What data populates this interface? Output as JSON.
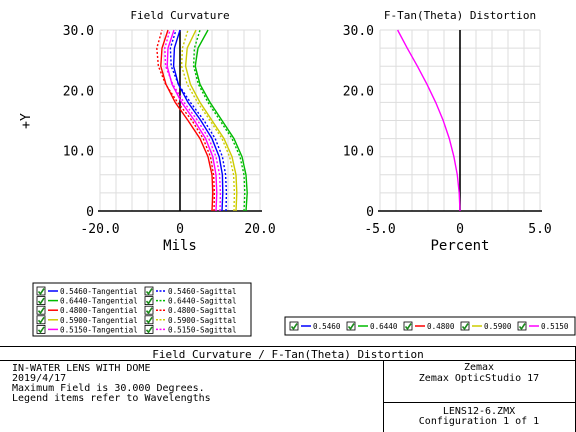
{
  "left_plot": {
    "title": "Field Curvature",
    "xlabel": "Mils",
    "ylabel": "+Y",
    "x_ticks": [
      "-20.0",
      "0",
      "20.0"
    ],
    "y_ticks": [
      "0",
      "10.0",
      "20.0",
      "30.0"
    ]
  },
  "right_plot": {
    "title": "F-Tan(Theta) Distortion",
    "xlabel": "Percent",
    "x_ticks": [
      "-5.0",
      "0",
      "5.0"
    ],
    "y_ticks": [
      "0",
      "10.0",
      "20.0",
      "30.0"
    ]
  },
  "legend_left": [
    [
      "0.5460-Tangential",
      "0.5460-Sagittal"
    ],
    [
      "0.6440-Tangential",
      "0.6440-Sagittal"
    ],
    [
      "0.4800-Tangential",
      "0.4800-Sagittal"
    ],
    [
      "0.5900-Tangential",
      "0.5900-Sagittal"
    ],
    [
      "0.5150-Tangential",
      "0.5150-Sagittal"
    ]
  ],
  "legend_right": [
    "0.5460",
    "0.6440",
    "0.4800",
    "0.5900",
    "0.5150"
  ],
  "colors": {
    "0.5460": "#0000ff",
    "0.6440": "#00bb00",
    "0.4800": "#ff0000",
    "0.5900": "#cccc00",
    "0.5150": "#ff00ff"
  },
  "info": {
    "banner": "Field Curvature / F-Tan(Theta) Distortion",
    "lines": [
      "IN-WATER LENS WITH DOME",
      "2019/4/17",
      "Maximum Field is 30.000 Degrees.",
      "Legend items refer to Wavelengths"
    ],
    "company": "Zemax",
    "product": "Zemax OpticStudio 17",
    "file": "LENS12-6.ZMX",
    "config": "Configuration 1 of 1"
  },
  "chart_data": [
    {
      "type": "line",
      "title": "Field Curvature",
      "xlabel": "Mils",
      "ylabel": "+Y",
      "xlim": [
        -20,
        20
      ],
      "ylim": [
        0,
        30
      ],
      "grid": true,
      "y": [
        0,
        3,
        6,
        9,
        12,
        15,
        18,
        21,
        24,
        27,
        30
      ],
      "series": [
        {
          "name": "0.5460-Tangential",
          "wavelength": "0.5460",
          "style": "solid",
          "x": [
            10.5,
            10.7,
            10.6,
            9.8,
            8.0,
            5.2,
            2.0,
            -0.4,
            -1.6,
            -1.4,
            0.0
          ]
        },
        {
          "name": "0.6440-Tangential",
          "wavelength": "0.6440",
          "style": "solid",
          "x": [
            16.5,
            16.8,
            16.5,
            15.5,
            13.5,
            10.5,
            7.5,
            5.0,
            3.8,
            4.5,
            7.0
          ]
        },
        {
          "name": "0.4800-Tangential",
          "wavelength": "0.4800",
          "style": "solid",
          "x": [
            8.0,
            8.2,
            8.0,
            7.0,
            5.0,
            2.0,
            -1.2,
            -3.5,
            -4.8,
            -4.5,
            -3.0
          ]
        },
        {
          "name": "0.5900-Tangential",
          "wavelength": "0.5900",
          "style": "solid",
          "x": [
            14.0,
            14.2,
            14.0,
            13.0,
            11.0,
            8.0,
            5.0,
            2.6,
            1.4,
            1.8,
            4.0
          ]
        },
        {
          "name": "0.5150-Tangential",
          "wavelength": "0.5150",
          "style": "solid",
          "x": [
            9.0,
            9.2,
            9.0,
            8.2,
            6.4,
            3.6,
            0.4,
            -2.0,
            -3.2,
            -3.0,
            -1.5
          ]
        },
        {
          "name": "0.5460-Sagittal",
          "wavelength": "0.5460",
          "style": "dotted",
          "x": [
            11.5,
            11.6,
            11.4,
            10.6,
            8.8,
            6.0,
            2.6,
            -0.4,
            -2.2,
            -2.4,
            -1.0
          ]
        },
        {
          "name": "0.6440-Sagittal",
          "wavelength": "0.6440",
          "style": "dotted",
          "x": [
            16.0,
            16.2,
            16.0,
            15.0,
            13.0,
            10.0,
            7.0,
            4.6,
            3.4,
            3.6,
            5.0
          ]
        },
        {
          "name": "0.4800-Sagittal",
          "wavelength": "0.4800",
          "style": "dotted",
          "x": [
            8.5,
            8.6,
            8.4,
            7.6,
            5.8,
            3.0,
            -0.6,
            -3.6,
            -5.4,
            -5.8,
            -4.5
          ]
        },
        {
          "name": "0.5900-Sagittal",
          "wavelength": "0.5900",
          "style": "dotted",
          "x": [
            13.5,
            13.6,
            13.4,
            12.4,
            10.5,
            7.5,
            4.4,
            1.8,
            0.4,
            0.6,
            2.0
          ]
        },
        {
          "name": "0.5150-Sagittal",
          "wavelength": "0.5150",
          "style": "dotted",
          "x": [
            10.0,
            10.1,
            9.9,
            9.0,
            7.2,
            4.4,
            1.0,
            -1.8,
            -3.6,
            -3.8,
            -2.5
          ]
        }
      ]
    },
    {
      "type": "line",
      "title": "F-Tan(Theta) Distortion",
      "xlabel": "Percent",
      "xlim": [
        -5,
        5
      ],
      "ylim": [
        0,
        30
      ],
      "grid": true,
      "y": [
        0,
        3,
        6,
        9,
        12,
        15,
        18,
        21,
        24,
        27,
        30
      ],
      "series": [
        {
          "name": "0.5150",
          "wavelength": "0.5150",
          "x": [
            0.0,
            -0.05,
            -0.17,
            -0.38,
            -0.67,
            -1.05,
            -1.52,
            -2.06,
            -2.66,
            -3.3,
            -3.9
          ]
        }
      ]
    }
  ]
}
